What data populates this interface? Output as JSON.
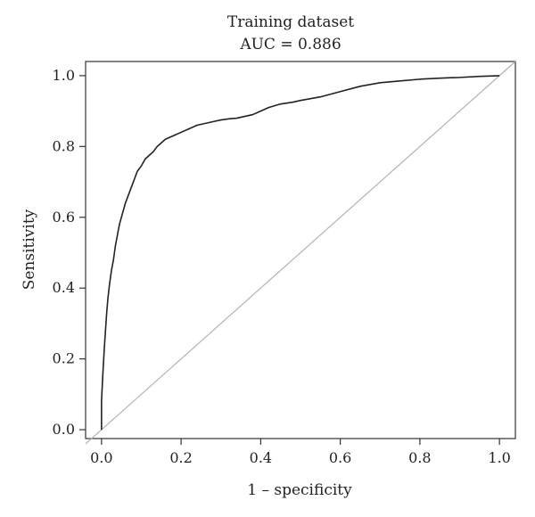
{
  "chart_data": {
    "type": "line",
    "title": "Training dataset",
    "subtitle": "AUC = 0.886",
    "xlabel": "1 – specificity",
    "ylabel": "Sensitivity",
    "xlim": [
      -0.04,
      1.04
    ],
    "ylim": [
      -0.025,
      1.04
    ],
    "xticks": [
      "0.0",
      "0.2",
      "0.4",
      "0.6",
      "0.8",
      "1.0"
    ],
    "yticks": [
      "0.0",
      "0.2",
      "0.4",
      "0.6",
      "0.8",
      "1.0"
    ],
    "grid": false,
    "legend": "none",
    "series": [
      {
        "color": "#222222",
        "x": [
          0.0,
          0.0,
          0.003,
          0.005,
          0.007,
          0.01,
          0.013,
          0.016,
          0.02,
          0.025,
          0.03,
          0.035,
          0.04,
          0.045,
          0.05,
          0.055,
          0.06,
          0.07,
          0.08,
          0.09,
          0.1,
          0.11,
          0.12,
          0.13,
          0.14,
          0.15,
          0.16,
          0.18,
          0.2,
          0.22,
          0.24,
          0.26,
          0.28,
          0.3,
          0.32,
          0.34,
          0.36,
          0.38,
          0.4,
          0.42,
          0.45,
          0.48,
          0.5,
          0.55,
          0.6,
          0.65,
          0.7,
          0.75,
          0.8,
          0.85,
          0.9,
          0.95,
          1.0
        ],
        "y": [
          0.0,
          0.08,
          0.15,
          0.19,
          0.23,
          0.28,
          0.33,
          0.37,
          0.41,
          0.45,
          0.48,
          0.52,
          0.55,
          0.58,
          0.6,
          0.62,
          0.64,
          0.67,
          0.7,
          0.73,
          0.745,
          0.765,
          0.775,
          0.785,
          0.8,
          0.81,
          0.82,
          0.83,
          0.84,
          0.85,
          0.86,
          0.865,
          0.87,
          0.875,
          0.878,
          0.88,
          0.885,
          0.89,
          0.9,
          0.91,
          0.92,
          0.925,
          0.93,
          0.94,
          0.955,
          0.97,
          0.98,
          0.985,
          0.99,
          0.993,
          0.995,
          0.998,
          1.0
        ]
      },
      {
        "color": "#b3b3b3",
        "x": [
          -0.04,
          1.04
        ],
        "y": [
          -0.04,
          1.04
        ]
      }
    ]
  }
}
